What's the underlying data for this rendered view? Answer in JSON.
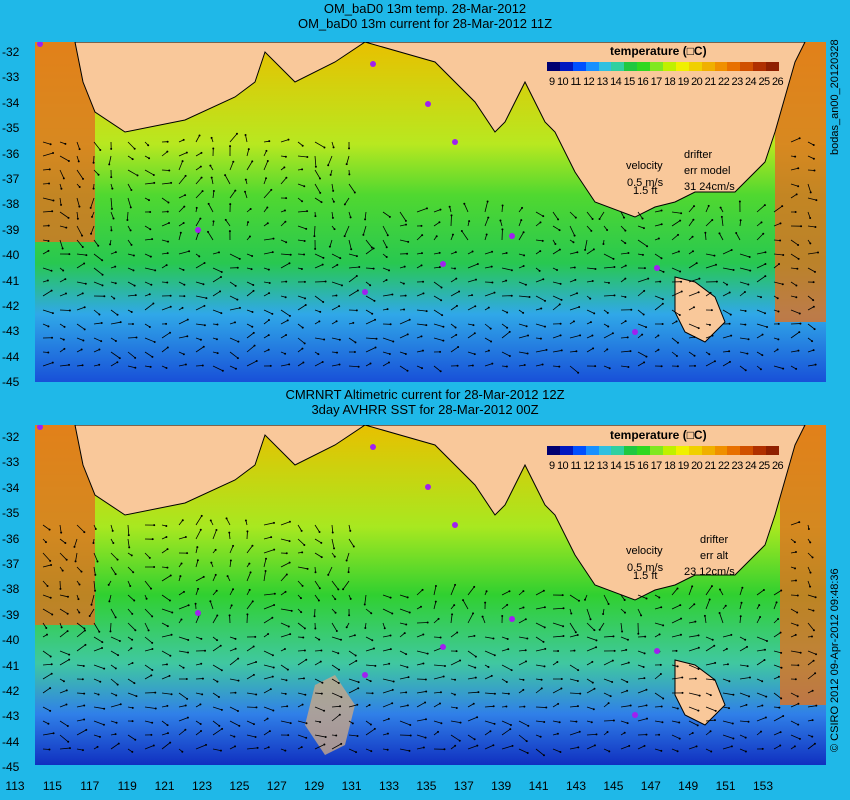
{
  "titles": {
    "top_line1": "OM_baD0 13m temp. 28-Mar-2012",
    "top_line2": "OM_baD0 13m current for 28-Mar-2012 11Z",
    "bottom_line1": "CMRNRT Altimetric current for 28-Mar-2012 12Z",
    "bottom_line2": "3day AVHRR SST for 28-Mar-2012 00Z"
  },
  "colorbar": {
    "title": "temperature (□C)",
    "labels": "9 10 11 12 13 14 15 16 17 18 19 20 21 22 23 24 25 26",
    "colors": [
      "#000070",
      "#0018c0",
      "#0050ff",
      "#1890ff",
      "#30c0e0",
      "#30d0a0",
      "#20c840",
      "#30d820",
      "#80e820",
      "#c0f000",
      "#f0f000",
      "#f0d000",
      "#f0b000",
      "#f09000",
      "#e87000",
      "#d05000",
      "#b03000",
      "#902000"
    ]
  },
  "top_panel": {
    "velocity_label": "velocity",
    "velocity_scale": "0.5 m/s",
    "velocity_scale2": "1.5 ft",
    "drifter_label": "drifter",
    "err_label": "err model",
    "err_value": "31 24cm/s",
    "side_label": "bodas_an00_20120328"
  },
  "bottom_panel": {
    "velocity_label": "velocity",
    "velocity_scale": "0.5 m/s",
    "velocity_scale2": "1.5 ft",
    "drifter_label": "drifter",
    "err_label": "err alt",
    "err_value": "23 12cm/s",
    "side_label": "© CSIRO 2012  09-Apr-2012 09:48:36"
  },
  "axes": {
    "y_ticks": [
      "-32",
      "-33",
      "-34",
      "-35",
      "-36",
      "-37",
      "-38",
      "-39",
      "-40",
      "-41",
      "-42",
      "-43",
      "-44",
      "-45"
    ],
    "x_ticks": [
      "113",
      "115",
      "117",
      "119",
      "121",
      "123",
      "125",
      "127",
      "129",
      "131",
      "133",
      "135",
      "137",
      "139",
      "141",
      "143",
      "145",
      "147",
      "149",
      "151",
      "153"
    ]
  },
  "colors": {
    "background": "#1fb8e8",
    "land": "#f9c89a",
    "drifter": "#a020f0"
  }
}
